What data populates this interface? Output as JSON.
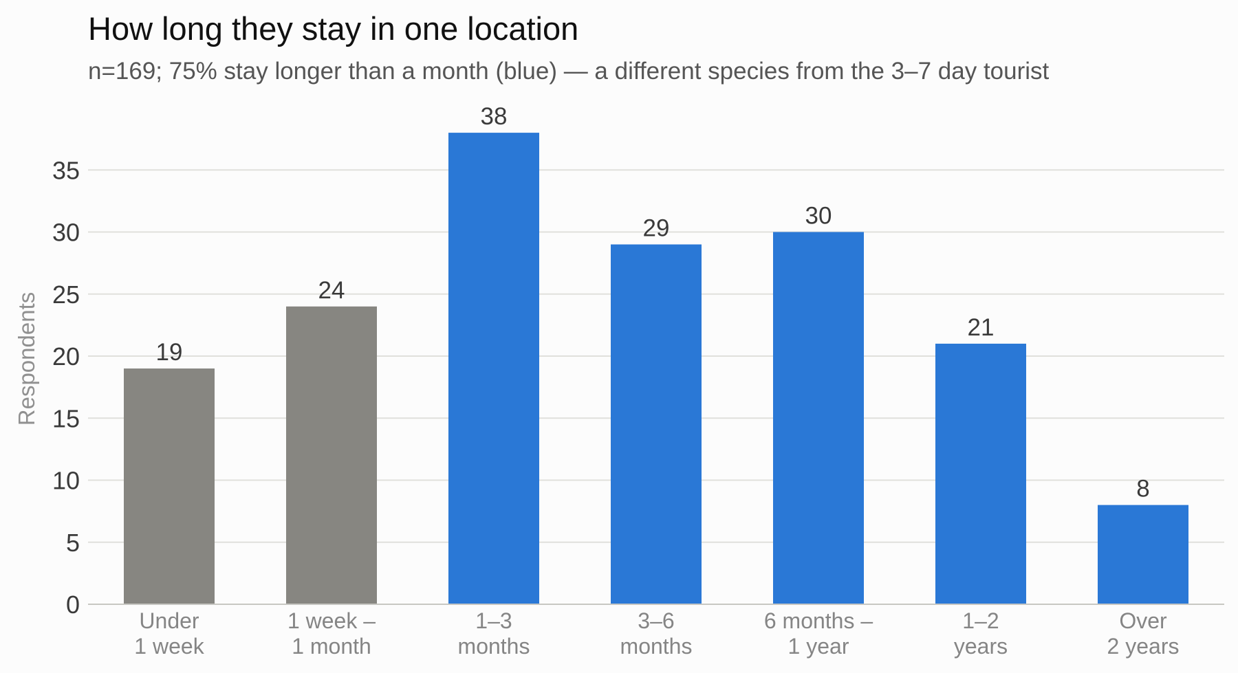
{
  "title": "How long they stay in one location",
  "subtitle": "n=169; 75% stay longer than a month (blue) — a different species from the 3–7 day tourist",
  "colors": {
    "short_stay": "#878681",
    "long_stay": "#2a78d6",
    "gridline": "#e0e0dc",
    "baseline": "#c7c7c2"
  },
  "chart_data": {
    "type": "bar",
    "title": "How long they stay in one location",
    "subtitle": "n=169; 75% stay longer than a month (blue) — a different species from the 3–7 day tourist",
    "ylabel": "Respondents",
    "xlabel": "",
    "ylim": [
      0,
      38
    ],
    "yticks": [
      0,
      5,
      10,
      15,
      20,
      25,
      30,
      35
    ],
    "grid": true,
    "legend": "none",
    "categories": [
      [
        "Under",
        "1 week"
      ],
      [
        "1 week –",
        "1 month"
      ],
      [
        "1–3",
        "months"
      ],
      [
        "3–6",
        "months"
      ],
      [
        "6 months –",
        "1 year"
      ],
      [
        "1–2",
        "years"
      ],
      [
        "Over",
        "2 years"
      ]
    ],
    "values": [
      19,
      24,
      38,
      29,
      30,
      21,
      8
    ],
    "highlight": [
      false,
      false,
      true,
      true,
      true,
      true,
      true
    ]
  }
}
